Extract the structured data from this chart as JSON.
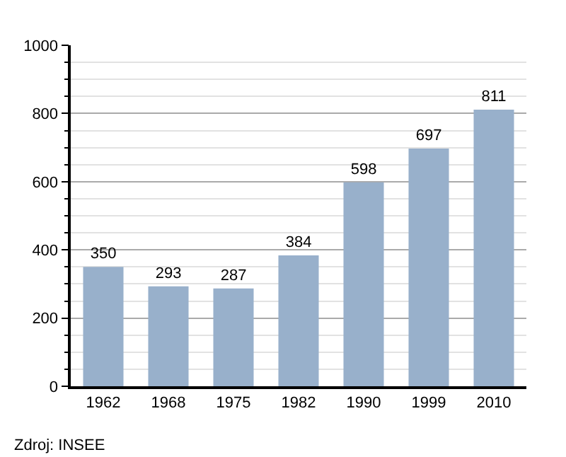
{
  "chart_data": {
    "type": "bar",
    "categories": [
      "1962",
      "1968",
      "1975",
      "1982",
      "1990",
      "1999",
      "2010"
    ],
    "values": [
      350,
      293,
      287,
      384,
      598,
      697,
      811
    ],
    "color": "#98b0cb",
    "data_labels": true,
    "ylim": [
      0,
      1000
    ],
    "yticks": [
      0,
      200,
      400,
      600,
      800,
      1000
    ],
    "grid": "y",
    "annotations": [
      "Zdroj: INSEE"
    ]
  }
}
